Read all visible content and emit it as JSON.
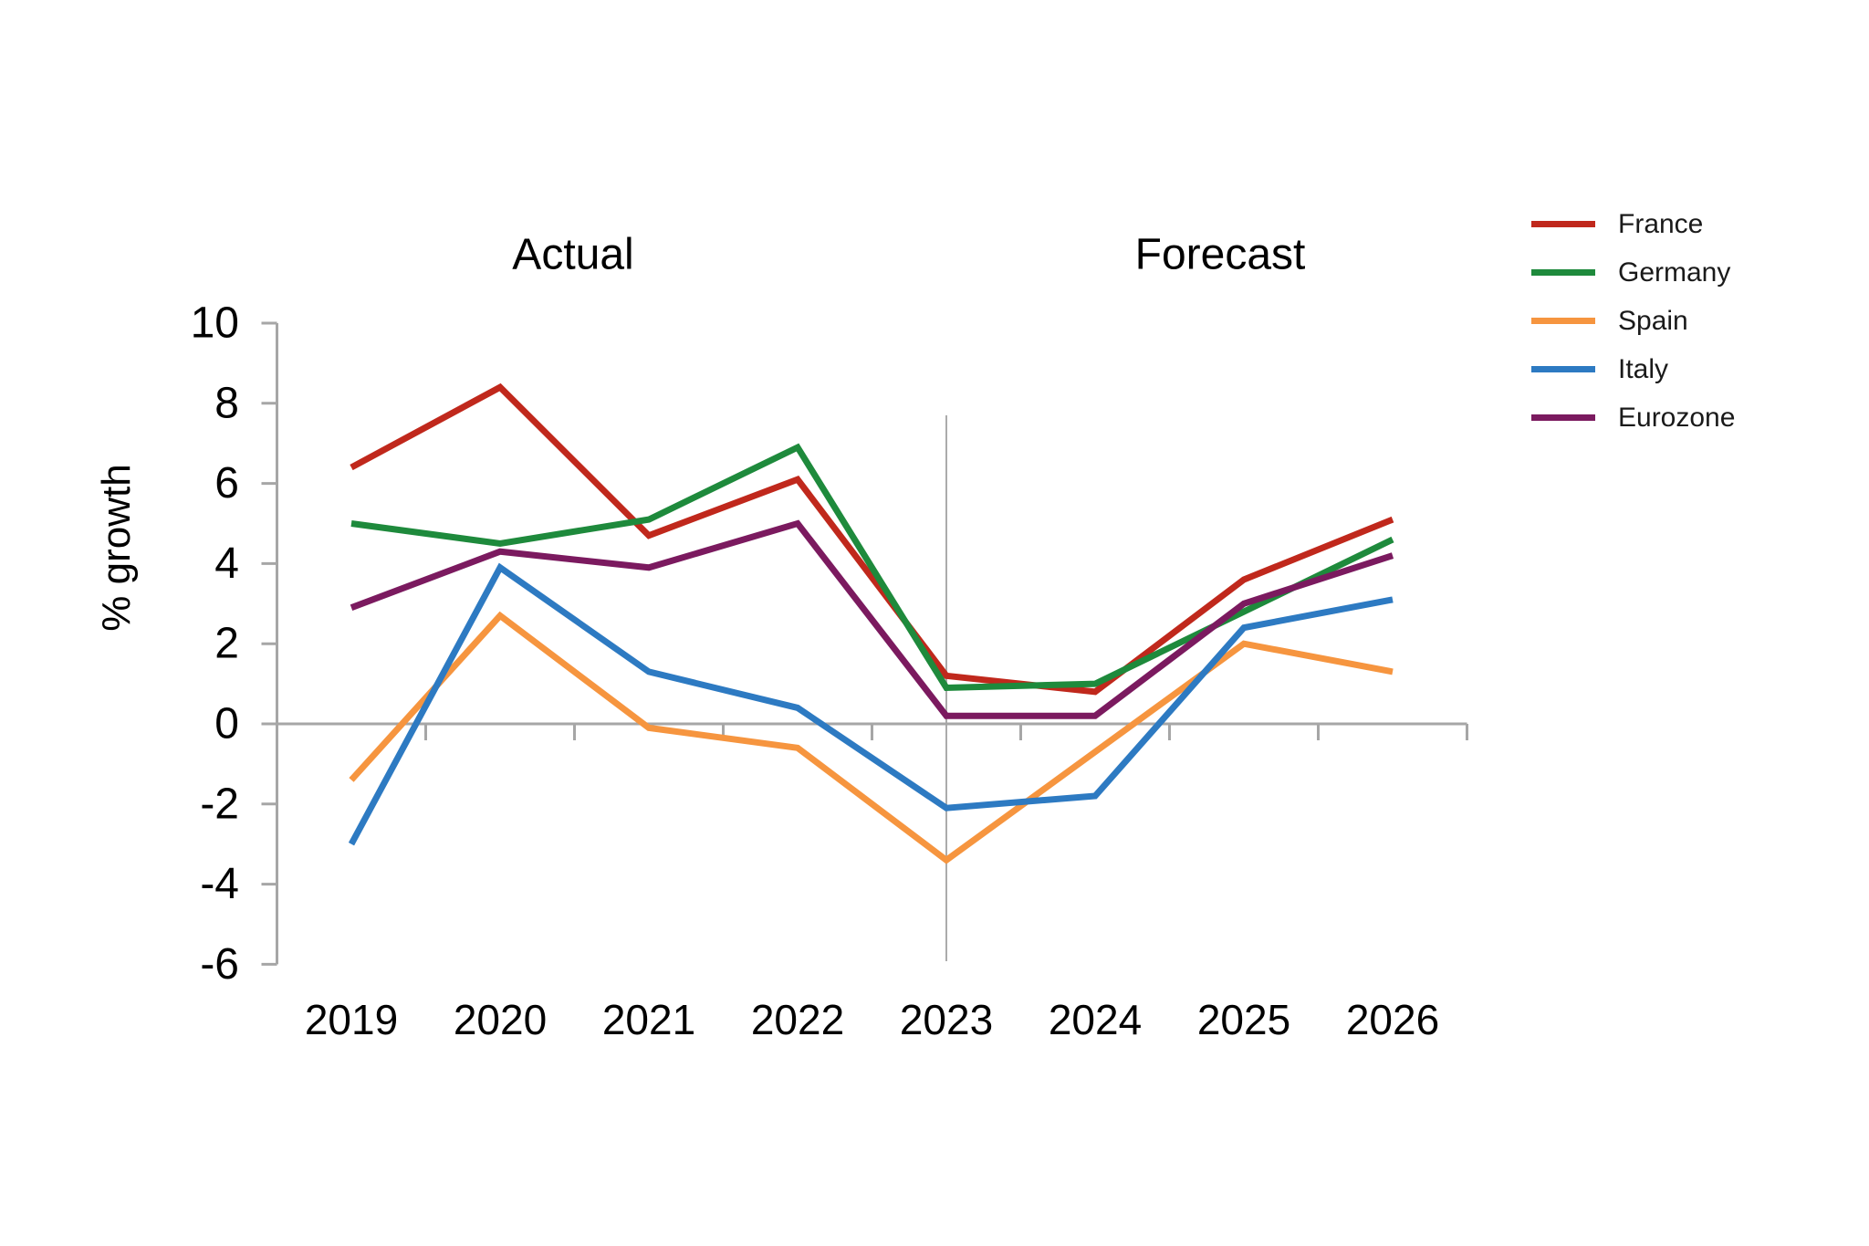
{
  "chart_data": {
    "type": "line",
    "title_left": "Actual",
    "title_right": "Forecast",
    "ylabel": "% growth",
    "categories": [
      "2019",
      "2020",
      "2021",
      "2022",
      "2023",
      "2024",
      "2025",
      "2026"
    ],
    "series": [
      {
        "name": "France",
        "color": "#c0281c",
        "values": [
          6.4,
          8.4,
          4.7,
          6.1,
          1.2,
          0.8,
          3.6,
          5.1
        ]
      },
      {
        "name": "Germany",
        "color": "#1e8a3c",
        "values": [
          5.0,
          4.5,
          5.1,
          6.9,
          0.9,
          1.0,
          2.8,
          4.6
        ]
      },
      {
        "name": "Spain",
        "color": "#f6953f",
        "values": [
          -1.4,
          2.7,
          -0.1,
          -0.6,
          -3.4,
          -0.7,
          2.0,
          1.3
        ]
      },
      {
        "name": "Italy",
        "color": "#2d7ac2",
        "values": [
          -3.0,
          3.9,
          1.3,
          0.4,
          -2.1,
          -1.8,
          2.4,
          3.1
        ]
      },
      {
        "name": "Eurozone",
        "color": "#7b1a5f",
        "values": [
          2.9,
          4.3,
          3.9,
          5.0,
          0.2,
          0.2,
          3.0,
          4.2
        ]
      }
    ],
    "ylim": [
      -6,
      10
    ],
    "ytick_step": 2,
    "yticks": [
      10,
      8,
      6,
      4,
      2,
      0,
      -2,
      -4,
      -6
    ],
    "divider_category": "2023",
    "legend_position": "right",
    "grid": false,
    "axis_color": "#a6a6a6",
    "divider_color": "#ababab",
    "text_color": "#000000"
  }
}
